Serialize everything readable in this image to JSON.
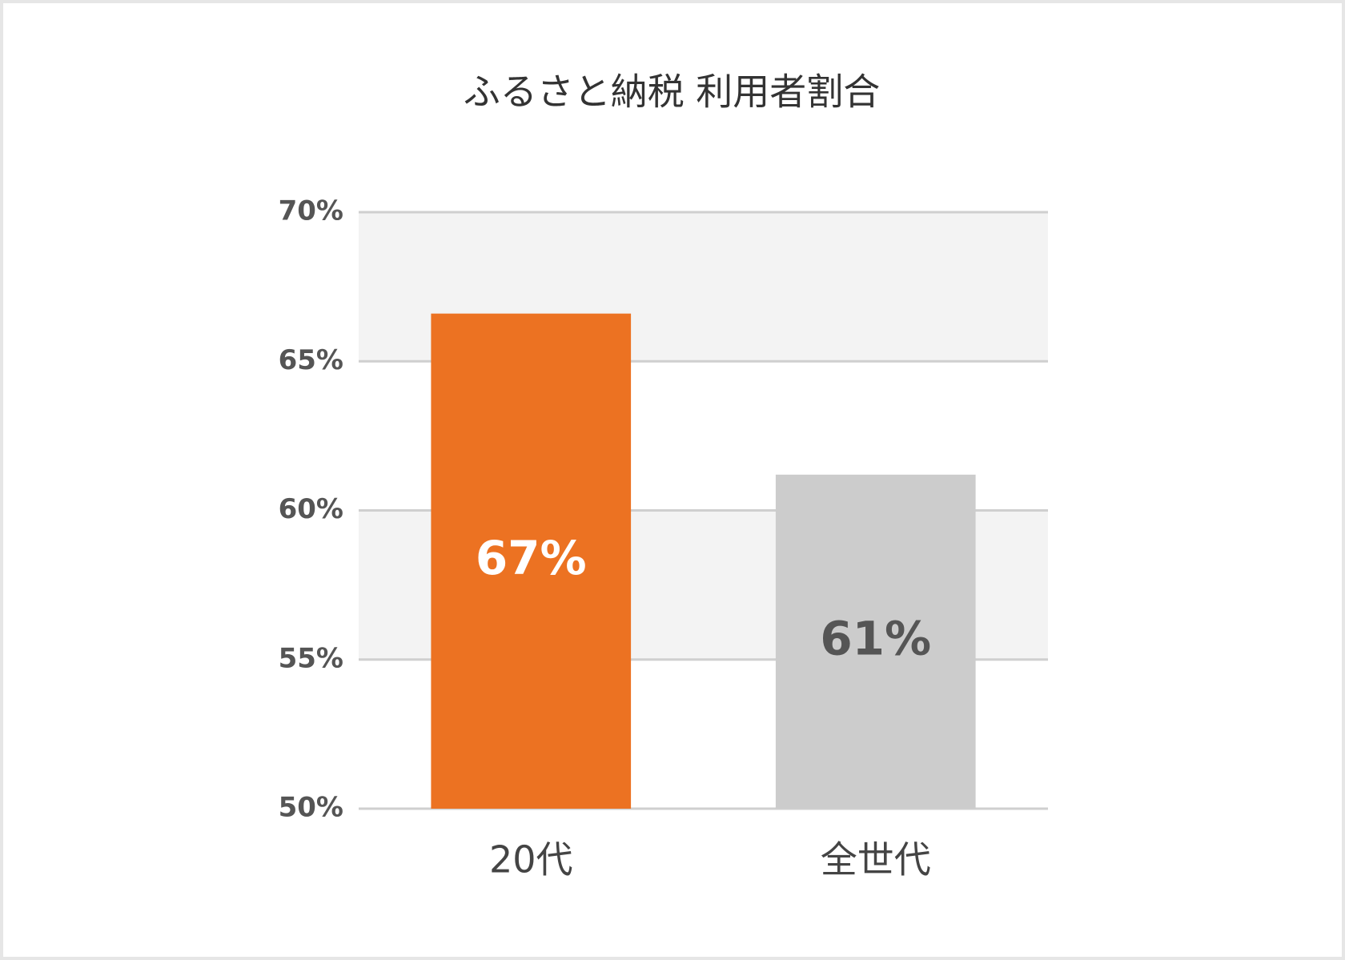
{
  "chart_data": {
    "type": "bar",
    "title": "ふるさと納税 利用者割合",
    "categories": [
      "20代",
      "全世代"
    ],
    "values": [
      66.6,
      61.2
    ],
    "value_labels": [
      "67%",
      "61%"
    ],
    "colors": [
      "#ec7222",
      "#cccccc"
    ],
    "ylim": [
      50,
      70
    ],
    "yticks": [
      {
        "value": 50,
        "label": "50%"
      },
      {
        "value": 55,
        "label": "55%"
      },
      {
        "value": 60,
        "label": "60%"
      },
      {
        "value": 65,
        "label": "65%"
      },
      {
        "value": 70,
        "label": "70%"
      }
    ],
    "grid": true
  }
}
